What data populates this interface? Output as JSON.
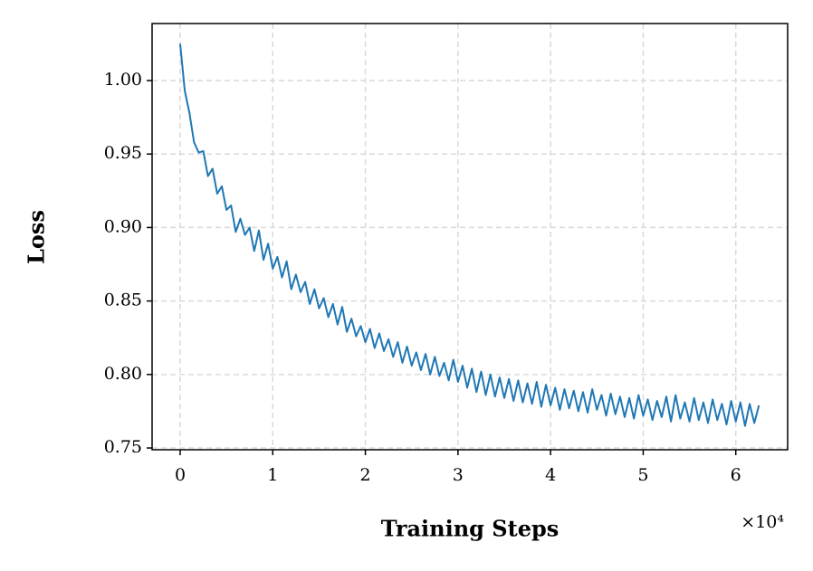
{
  "chart_data": {
    "type": "line",
    "x_label": "Training Steps",
    "y_label": "Loss",
    "x_offset_label": "×10⁴",
    "xlim": [
      -3030,
      65600
    ],
    "ylim": [
      0.7488,
      1.0388
    ],
    "xticks": [
      0,
      {
        "value": 10000,
        "label": "1"
      },
      {
        "value": 20000,
        "label": "2"
      },
      {
        "value": 30000,
        "label": "3"
      },
      {
        "value": 40000,
        "label": "4"
      },
      {
        "value": 50000,
        "label": "5"
      },
      {
        "value": 60000,
        "label": "6"
      }
    ],
    "yticks": [
      0.75,
      {
        "value": 0.8,
        "label": "0.80"
      },
      0.85,
      {
        "value": 0.9,
        "label": "0.90"
      },
      0.95,
      {
        "value": 1,
        "label": "1.00"
      }
    ],
    "grid": true,
    "x": [
      0,
      500,
      1000,
      1500,
      2000,
      2500,
      3000,
      3500,
      4000,
      4500,
      5000,
      5500,
      6000,
      6500,
      7000,
      7500,
      8000,
      8500,
      9000,
      9500,
      10000,
      10500,
      11000,
      11500,
      12000,
      12500,
      13000,
      13500,
      14000,
      14500,
      15000,
      15500,
      16000,
      16500,
      17000,
      17500,
      18000,
      18500,
      19000,
      19500,
      20000,
      20500,
      21000,
      21500,
      22000,
      22500,
      23000,
      23500,
      24000,
      24500,
      25000,
      25500,
      26000,
      26500,
      27000,
      27500,
      28000,
      28500,
      29000,
      29500,
      30000,
      30500,
      31000,
      31500,
      32000,
      32500,
      33000,
      33500,
      34000,
      34500,
      35000,
      35500,
      36000,
      36500,
      37000,
      37500,
      38000,
      38500,
      39000,
      39500,
      40000,
      40500,
      41000,
      41500,
      42000,
      42500,
      43000,
      43500,
      44000,
      44500,
      45000,
      45500,
      46000,
      46500,
      47000,
      47500,
      48000,
      48500,
      49000,
      49500,
      50000,
      50500,
      51000,
      51500,
      52000,
      52500,
      53000,
      53500,
      54000,
      54500,
      55000,
      55500,
      56000,
      56500,
      57000,
      57500,
      58000,
      58500,
      59000,
      59500,
      60000,
      60500,
      61000,
      61500,
      62000,
      62500
    ],
    "series": [
      {
        "color": "#1f77b4",
        "values": [
          1.025,
          0.993,
          0.978,
          0.958,
          0.951,
          0.952,
          0.935,
          0.94,
          0.923,
          0.928,
          0.912,
          0.915,
          0.897,
          0.906,
          0.895,
          0.9,
          0.884,
          0.898,
          0.878,
          0.889,
          0.872,
          0.88,
          0.866,
          0.877,
          0.858,
          0.868,
          0.856,
          0.863,
          0.848,
          0.858,
          0.845,
          0.852,
          0.839,
          0.848,
          0.834,
          0.846,
          0.829,
          0.838,
          0.826,
          0.833,
          0.822,
          0.831,
          0.818,
          0.828,
          0.816,
          0.824,
          0.812,
          0.822,
          0.808,
          0.819,
          0.806,
          0.815,
          0.803,
          0.814,
          0.8,
          0.812,
          0.799,
          0.808,
          0.796,
          0.81,
          0.795,
          0.806,
          0.791,
          0.804,
          0.788,
          0.802,
          0.786,
          0.8,
          0.785,
          0.798,
          0.784,
          0.797,
          0.782,
          0.796,
          0.781,
          0.794,
          0.78,
          0.795,
          0.778,
          0.793,
          0.779,
          0.791,
          0.776,
          0.79,
          0.777,
          0.789,
          0.775,
          0.788,
          0.774,
          0.79,
          0.776,
          0.786,
          0.772,
          0.787,
          0.773,
          0.785,
          0.771,
          0.784,
          0.77,
          0.786,
          0.772,
          0.783,
          0.769,
          0.782,
          0.771,
          0.785,
          0.768,
          0.786,
          0.77,
          0.781,
          0.768,
          0.784,
          0.769,
          0.781,
          0.767,
          0.783,
          0.769,
          0.78,
          0.766,
          0.782,
          0.768,
          0.781,
          0.765,
          0.78,
          0.767,
          0.779
        ]
      }
    ]
  }
}
